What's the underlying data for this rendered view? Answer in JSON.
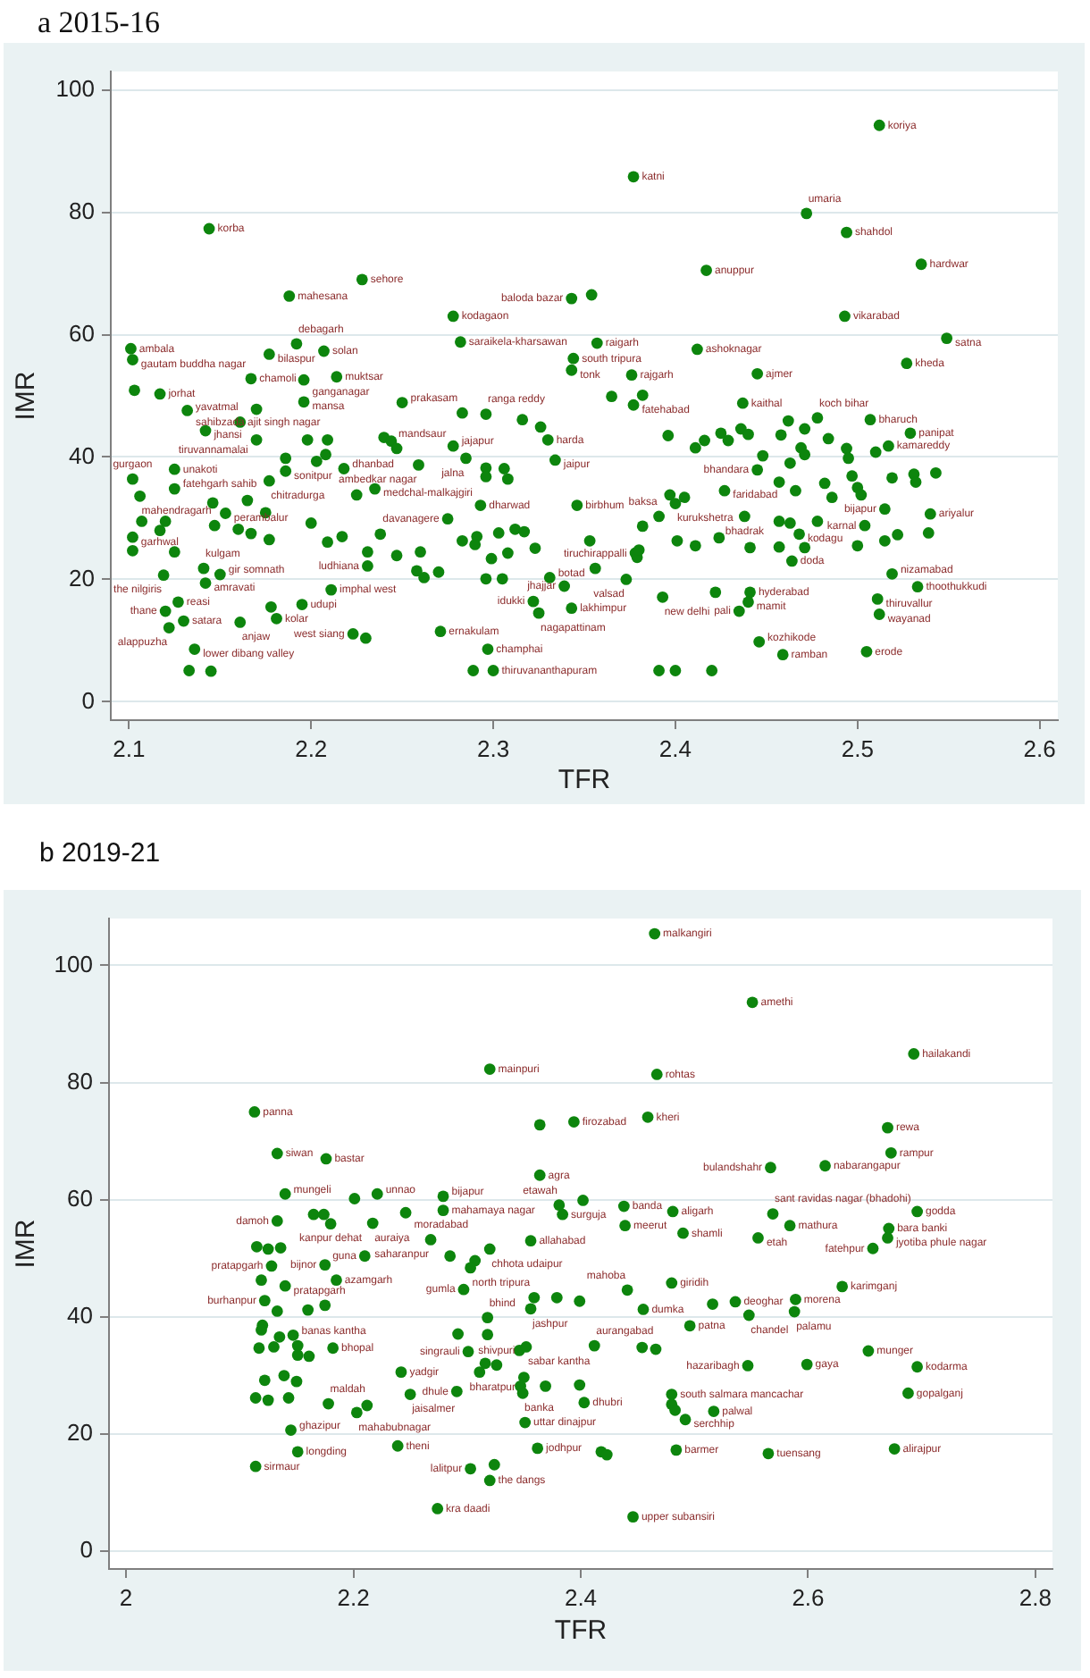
{
  "chart_data": [
    {
      "type": "scatter",
      "title": "a 2015-16",
      "xlabel": "TFR",
      "ylabel": "IMR",
      "color": "#0d850d",
      "marker": "circle",
      "grid": "y",
      "xlim": [
        2.09,
        2.61
      ],
      "ylim": [
        -3,
        103
      ],
      "xticks": [
        2.1,
        2.2,
        2.3,
        2.4,
        2.5,
        2.6
      ],
      "yticks": [
        0,
        20,
        40,
        60,
        80,
        100
      ],
      "x": [
        2.144,
        2.228,
        2.188,
        2.278,
        2.101,
        2.102,
        2.192,
        2.177,
        2.207,
        2.282,
        2.167,
        2.196,
        2.214,
        2.103,
        2.117,
        2.25,
        2.512,
        2.377,
        2.472,
        2.494,
        2.535,
        2.417,
        2.354,
        2.343,
        2.493,
        2.549,
        2.527,
        2.357,
        2.344,
        2.343,
        2.376,
        2.412,
        2.445,
        2.437,
        2.365,
        2.382,
        2.377,
        2.161,
        2.142,
        2.132,
        2.17,
        2.196,
        2.17,
        2.198,
        2.209,
        2.24,
        2.244,
        2.247,
        2.278,
        2.283,
        2.296,
        2.316,
        2.326,
        2.33,
        2.334,
        2.102,
        2.125,
        2.106,
        2.125,
        2.177,
        2.186,
        2.203,
        2.208,
        2.186,
        2.218,
        2.259,
        2.285,
        2.296,
        2.296,
        2.306,
        2.308,
        2.235,
        2.225,
        2.275,
        2.293,
        2.146,
        2.165,
        2.153,
        2.175,
        2.107,
        2.12,
        2.117,
        2.147,
        2.16,
        2.167,
        2.177,
        2.102,
        2.102,
        2.125,
        2.2,
        2.209,
        2.217,
        2.231,
        2.238,
        2.247,
        2.26,
        2.283,
        2.291,
        2.29,
        2.303,
        2.299,
        2.308,
        2.312,
        2.317,
        2.323,
        2.331,
        2.339,
        2.343,
        2.231,
        2.258,
        2.262,
        2.27,
        2.296,
        2.305,
        2.119,
        2.141,
        2.15,
        2.142,
        2.211,
        2.127,
        2.12,
        2.181,
        2.178,
        2.195,
        2.13,
        2.122,
        2.161,
        2.136,
        2.133,
        2.145,
        2.223,
        2.23,
        2.271,
        2.297,
        2.289,
        2.3,
        2.462,
        2.478,
        2.507,
        2.529,
        2.396,
        2.411,
        2.416,
        2.425,
        2.436,
        2.44,
        2.429,
        2.458,
        2.471,
        2.484,
        2.494,
        2.495,
        2.497,
        2.5,
        2.502,
        2.51,
        2.517,
        2.448,
        2.463,
        2.469,
        2.471,
        2.445,
        2.427,
        2.457,
        2.466,
        2.482,
        2.486,
        2.519,
        2.531,
        2.532,
        2.543,
        2.515,
        2.54,
        2.522,
        2.539,
        2.515,
        2.504,
        2.5,
        2.468,
        2.457,
        2.463,
        2.478,
        2.438,
        2.441,
        2.457,
        2.471,
        2.464,
        2.424,
        2.411,
        2.401,
        2.378,
        2.379,
        2.38,
        2.356,
        2.373,
        2.397,
        2.4,
        2.405,
        2.391,
        2.346,
        2.382,
        2.353,
        2.519,
        2.533,
        2.511,
        2.512,
        2.393,
        2.422,
        2.441,
        2.44,
        2.435,
        2.446,
        2.459,
        2.505,
        2.391,
        2.4,
        2.42,
        2.322,
        2.325
      ],
      "values": [
        77.3,
        69.0,
        66.3,
        63.0,
        57.7,
        55.9,
        58.5,
        56.8,
        57.3,
        58.8,
        52.8,
        52.6,
        53.1,
        50.9,
        50.3,
        48.9,
        94.2,
        85.8,
        79.8,
        76.7,
        71.5,
        70.5,
        66.5,
        65.9,
        63.0,
        59.4,
        55.3,
        58.6,
        56.1,
        54.2,
        53.4,
        57.6,
        53.6,
        48.8,
        49.9,
        50.1,
        48.5,
        45.7,
        44.3,
        47.6,
        47.8,
        49.0,
        42.8,
        42.8,
        42.8,
        43.2,
        42.6,
        41.4,
        41.8,
        47.2,
        47.0,
        46.1,
        44.9,
        42.8,
        39.5,
        36.4,
        38.0,
        33.6,
        34.8,
        36.1,
        39.8,
        39.3,
        40.4,
        37.7,
        38.1,
        38.7,
        39.8,
        38.2,
        36.8,
        38.1,
        36.4,
        34.8,
        33.8,
        29.9,
        32.1,
        32.5,
        32.9,
        30.8,
        30.9,
        29.5,
        29.5,
        28.0,
        28.8,
        28.2,
        27.5,
        26.5,
        26.9,
        24.7,
        24.5,
        29.2,
        26.1,
        27.0,
        24.5,
        27.4,
        23.9,
        24.5,
        26.3,
        27.0,
        25.7,
        27.6,
        23.4,
        24.3,
        28.2,
        27.8,
        25.1,
        20.3,
        18.9,
        15.3,
        22.2,
        21.4,
        20.3,
        21.2,
        20.1,
        20.1,
        20.7,
        21.8,
        20.8,
        19.4,
        18.3,
        16.3,
        14.8,
        13.6,
        15.5,
        15.9,
        13.2,
        12.1,
        13.0,
        8.6,
        5.1,
        5.0,
        11.1,
        10.4,
        11.5,
        8.6,
        5.1,
        5.1,
        45.9,
        46.4,
        46.1,
        43.9,
        43.5,
        41.5,
        42.7,
        43.9,
        44.6,
        43.7,
        42.7,
        43.6,
        44.6,
        43.0,
        41.4,
        39.8,
        36.9,
        35.0,
        33.8,
        40.8,
        41.8,
        40.2,
        39.0,
        41.5,
        40.4,
        37.9,
        34.5,
        35.9,
        34.5,
        35.7,
        33.4,
        36.6,
        37.2,
        35.9,
        37.4,
        31.5,
        30.7,
        27.3,
        27.6,
        26.3,
        28.8,
        25.5,
        27.4,
        29.5,
        29.2,
        29.5,
        30.3,
        25.2,
        25.3,
        25.2,
        23.0,
        26.8,
        25.5,
        26.3,
        24.3,
        23.6,
        24.8,
        21.8,
        20.0,
        33.8,
        32.4,
        33.4,
        30.3,
        32.1,
        28.7,
        26.3,
        20.9,
        18.8,
        16.8,
        14.3,
        17.1,
        17.9,
        17.9,
        16.3,
        14.8,
        9.8,
        7.7,
        8.2,
        5.1,
        5.1,
        5.1,
        16.4,
        14.5
      ],
      "annotations": [
        {
          "text": "koriya",
          "x": 2.512,
          "y": 94.2
        },
        {
          "text": "katni",
          "x": 2.377,
          "y": 85.8
        },
        {
          "text": "umaria",
          "x": 2.472,
          "y": 79.8
        },
        {
          "text": "korba",
          "x": 2.144,
          "y": 77.3
        },
        {
          "text": "shahdol",
          "x": 2.494,
          "y": 76.7
        },
        {
          "text": "hardwar",
          "x": 2.535,
          "y": 71.5
        },
        {
          "text": "anuppur",
          "x": 2.417,
          "y": 70.5
        },
        {
          "text": "sehore",
          "x": 2.228,
          "y": 69.0
        },
        {
          "text": "mahesana",
          "x": 2.188,
          "y": 66.3
        },
        {
          "text": "baloda bazar",
          "x": 2.343,
          "y": 65.9
        },
        {
          "text": "kodagaon",
          "x": 2.278,
          "y": 63.0
        },
        {
          "text": "vikarabad",
          "x": 2.493,
          "y": 63.0
        },
        {
          "text": "satna",
          "x": 2.549,
          "y": 59.4
        },
        {
          "text": "saraikela-kharsawan",
          "x": 2.282,
          "y": 58.8
        },
        {
          "text": "raigarh",
          "x": 2.357,
          "y": 58.6
        },
        {
          "text": "ambala",
          "x": 2.101,
          "y": 57.7
        },
        {
          "text": "ashoknagar",
          "x": 2.412,
          "y": 57.6
        },
        {
          "text": "debagarh",
          "x": 2.192,
          "y": 58.5
        },
        {
          "text": "solan",
          "x": 2.207,
          "y": 57.3
        },
        {
          "text": "bilaspur",
          "x": 2.177,
          "y": 56.8
        },
        {
          "text": "south tripura",
          "x": 2.344,
          "y": 56.1
        },
        {
          "text": "gautam buddha nagar",
          "x": 2.102,
          "y": 55.9
        },
        {
          "text": "kheda",
          "x": 2.527,
          "y": 55.3
        },
        {
          "text": "tonk",
          "x": 2.343,
          "y": 54.2
        },
        {
          "text": "ajmer",
          "x": 2.445,
          "y": 53.6
        },
        {
          "text": "rajgarh",
          "x": 2.376,
          "y": 53.4
        },
        {
          "text": "muktsar",
          "x": 2.214,
          "y": 53.1
        },
        {
          "text": "chamoli",
          "x": 2.167,
          "y": 52.8
        },
        {
          "text": "ganganagar",
          "x": 2.196,
          "y": 52.6
        },
        {
          "text": "jorhat",
          "x": 2.117,
          "y": 50.3
        },
        {
          "text": "mansa",
          "x": 2.196,
          "y": 49.0
        },
        {
          "text": "prakasam",
          "x": 2.25,
          "y": 48.9
        },
        {
          "text": "kaithal",
          "x": 2.437,
          "y": 48.8
        },
        {
          "text": "fatehabad",
          "x": 2.377,
          "y": 48.5
        },
        {
          "text": "sahibzada ajit singh nagar",
          "x": 2.132,
          "y": 47.6
        },
        {
          "text": "ranga reddy",
          "x": 2.296,
          "y": 47.0
        },
        {
          "text": "koch bihar",
          "x": 2.478,
          "y": 46.4
        },
        {
          "text": "bharuch",
          "x": 2.507,
          "y": 46.1
        },
        {
          "text": "yavatmal",
          "x": 2.161,
          "y": 45.7
        },
        {
          "text": "jhansi",
          "x": 2.142,
          "y": 44.3
        },
        {
          "text": "panipat",
          "x": 2.529,
          "y": 43.9
        },
        {
          "text": "tiruvannamalai",
          "x": 2.17,
          "y": 42.8
        },
        {
          "text": "harda",
          "x": 2.33,
          "y": 42.8
        },
        {
          "text": "kamareddy",
          "x": 2.517,
          "y": 41.8
        },
        {
          "text": "jajapur",
          "x": 2.278,
          "y": 41.8
        },
        {
          "text": "mandsaur",
          "x": 2.247,
          "y": 41.4
        },
        {
          "text": "jalna",
          "x": 2.285,
          "y": 39.8
        },
        {
          "text": "jaipur",
          "x": 2.334,
          "y": 39.5
        },
        {
          "text": "ambedkar nagar",
          "x": 2.259,
          "y": 38.7
        },
        {
          "text": "dhanbad",
          "x": 2.218,
          "y": 38.1
        },
        {
          "text": "unakoti",
          "x": 2.125,
          "y": 38.0
        },
        {
          "text": "bhandara",
          "x": 2.445,
          "y": 37.9
        },
        {
          "text": "sonitpur",
          "x": 2.186,
          "y": 37.7
        },
        {
          "text": "gurgaon",
          "x": 2.102,
          "y": 36.4
        },
        {
          "text": "chitradurga",
          "x": 2.177,
          "y": 36.1
        },
        {
          "text": "fatehgarh sahib",
          "x": 2.125,
          "y": 34.8
        },
        {
          "text": "medchal-malkajgiri",
          "x": 2.235,
          "y": 34.8
        },
        {
          "text": "faridabad",
          "x": 2.427,
          "y": 34.5
        },
        {
          "text": "mahendragarh",
          "x": 2.106,
          "y": 33.6
        },
        {
          "text": "kurukshetra",
          "x": 2.4,
          "y": 32.4
        },
        {
          "text": "birbhum",
          "x": 2.346,
          "y": 32.1
        },
        {
          "text": "dharwad",
          "x": 2.293,
          "y": 32.1
        },
        {
          "text": "bijapur",
          "x": 2.515,
          "y": 31.5
        },
        {
          "text": "perambalur",
          "x": 2.153,
          "y": 30.8
        },
        {
          "text": "ariyalur",
          "x": 2.54,
          "y": 30.7
        },
        {
          "text": "baksa",
          "x": 2.391,
          "y": 30.3
        },
        {
          "text": "bhadrak",
          "x": 2.438,
          "y": 30.3
        },
        {
          "text": "davanagere",
          "x": 2.275,
          "y": 29.9
        },
        {
          "text": "karnal",
          "x": 2.504,
          "y": 28.8
        },
        {
          "text": "kodagu",
          "x": 2.468,
          "y": 27.4
        },
        {
          "text": "garhwal",
          "x": 2.102,
          "y": 26.9
        },
        {
          "text": "doda",
          "x": 2.464,
          "y": 23.0
        },
        {
          "text": "ludhiana",
          "x": 2.231,
          "y": 22.2
        },
        {
          "text": "tiruchirappalli",
          "x": 2.356,
          "y": 21.8
        },
        {
          "text": "kulgam",
          "x": 2.141,
          "y": 21.8
        },
        {
          "text": "nizamabad",
          "x": 2.519,
          "y": 20.9
        },
        {
          "text": "gir somnath",
          "x": 2.15,
          "y": 20.8
        },
        {
          "text": "the nilgiris",
          "x": 2.119,
          "y": 20.7
        },
        {
          "text": "botad",
          "x": 2.331,
          "y": 20.3
        },
        {
          "text": "valsad",
          "x": 2.373,
          "y": 20.0
        },
        {
          "text": "amravati",
          "x": 2.142,
          "y": 19.4
        },
        {
          "text": "jhajjar",
          "x": 2.339,
          "y": 18.9
        },
        {
          "text": "thoothukkudi",
          "x": 2.533,
          "y": 18.8
        },
        {
          "text": "imphal west",
          "x": 2.211,
          "y": 18.3
        },
        {
          "text": "hyderabad",
          "x": 2.441,
          "y": 17.9
        },
        {
          "text": "new delhi",
          "x": 2.393,
          "y": 17.1
        },
        {
          "text": "thiruvallur",
          "x": 2.511,
          "y": 16.8
        },
        {
          "text": "idukki",
          "x": 2.322,
          "y": 16.4
        },
        {
          "text": "reasi",
          "x": 2.127,
          "y": 16.3
        },
        {
          "text": "mamit",
          "x": 2.44,
          "y": 16.3
        },
        {
          "text": "udupi",
          "x": 2.195,
          "y": 15.9
        },
        {
          "text": "lakhimpur",
          "x": 2.343,
          "y": 15.3
        },
        {
          "text": "thane",
          "x": 2.12,
          "y": 14.8
        },
        {
          "text": "pali",
          "x": 2.435,
          "y": 14.8
        },
        {
          "text": "nagapattinam",
          "x": 2.325,
          "y": 14.5
        },
        {
          "text": "wayanad",
          "x": 2.512,
          "y": 14.3
        },
        {
          "text": "kolar",
          "x": 2.181,
          "y": 13.6
        },
        {
          "text": "satara",
          "x": 2.13,
          "y": 13.2
        },
        {
          "text": "anjaw",
          "x": 2.161,
          "y": 13.0
        },
        {
          "text": "alappuzha",
          "x": 2.122,
          "y": 12.1
        },
        {
          "text": "ernakulam",
          "x": 2.271,
          "y": 11.5
        },
        {
          "text": "west siang",
          "x": 2.223,
          "y": 11.1
        },
        {
          "text": "kozhikode",
          "x": 2.446,
          "y": 9.8
        },
        {
          "text": "lower dibang valley",
          "x": 2.136,
          "y": 8.6
        },
        {
          "text": "champhai",
          "x": 2.297,
          "y": 8.6
        },
        {
          "text": "erode",
          "x": 2.505,
          "y": 8.2
        },
        {
          "text": "ramban",
          "x": 2.459,
          "y": 7.7
        },
        {
          "text": "thiruvananthapuram",
          "x": 2.3,
          "y": 5.1
        }
      ]
    },
    {
      "type": "scatter",
      "title": "b 2019-21",
      "xlabel": "TFR",
      "ylabel": "IMR",
      "color": "#0d850d",
      "marker": "circle",
      "grid": "y",
      "xlim": [
        1.985,
        2.815
      ],
      "ylim": [
        -3,
        108
      ],
      "xticks": [
        2,
        2.2,
        2.4,
        2.6,
        2.8
      ],
      "yticks": [
        0,
        20,
        40,
        60,
        80,
        100
      ],
      "x": [
        2.32,
        2.113,
        2.133,
        2.176,
        2.364,
        2.394,
        2.364,
        2.14,
        2.201,
        2.221,
        2.279,
        2.279,
        2.246,
        2.165,
        2.174,
        2.18,
        2.217,
        2.133,
        2.381,
        2.384,
        2.402,
        2.268,
        2.356,
        2.32,
        2.285,
        2.307,
        2.303,
        2.21,
        2.115,
        2.125,
        2.136,
        2.128,
        2.175,
        2.119,
        2.14,
        2.185,
        2.297,
        2.122,
        2.175,
        2.16,
        2.133,
        2.359,
        2.356,
        2.379,
        2.399,
        2.441,
        2.318,
        2.12,
        2.119,
        2.135,
        2.147,
        2.117,
        2.13,
        2.151,
        2.182,
        2.151,
        2.161,
        2.292,
        2.318,
        2.301,
        2.316,
        2.311,
        2.326,
        2.346,
        2.352,
        2.35,
        2.347,
        2.349,
        2.369,
        2.399,
        2.403,
        2.242,
        2.25,
        2.291,
        2.122,
        2.139,
        2.15,
        2.114,
        2.125,
        2.143,
        2.178,
        2.212,
        2.203,
        2.351,
        2.145,
        2.151,
        2.239,
        2.114,
        2.362,
        2.418,
        2.423,
        2.303,
        2.324,
        2.32,
        2.274,
        2.465,
        2.551,
        2.693,
        2.467,
        2.459,
        2.67,
        2.673,
        2.567,
        2.615,
        2.438,
        2.439,
        2.481,
        2.49,
        2.569,
        2.584,
        2.556,
        2.696,
        2.671,
        2.67,
        2.657,
        2.48,
        2.455,
        2.63,
        2.516,
        2.536,
        2.548,
        2.589,
        2.588,
        2.496,
        2.412,
        2.454,
        2.466,
        2.547,
        2.599,
        2.653,
        2.696,
        2.688,
        2.48,
        2.48,
        2.483,
        2.517,
        2.492,
        2.484,
        2.565,
        2.676,
        2.446
      ],
      "values": [
        82.3,
        75.0,
        67.9,
        67.0,
        72.8,
        73.3,
        64.2,
        61.0,
        60.2,
        61.0,
        60.6,
        58.2,
        57.8,
        57.5,
        57.5,
        55.9,
        56.0,
        56.4,
        59.1,
        57.5,
        59.9,
        53.2,
        53.0,
        51.6,
        50.4,
        49.6,
        48.4,
        50.4,
        52.0,
        51.6,
        51.8,
        48.7,
        48.9,
        46.3,
        45.3,
        46.3,
        44.7,
        42.8,
        42.0,
        41.2,
        41.0,
        43.3,
        41.4,
        43.3,
        42.7,
        44.6,
        39.9,
        38.6,
        37.8,
        36.6,
        36.9,
        34.7,
        34.9,
        35.1,
        34.7,
        33.5,
        33.3,
        37.1,
        37.0,
        34.1,
        32.1,
        30.6,
        31.8,
        34.3,
        34.9,
        29.7,
        28.2,
        27.0,
        28.2,
        28.4,
        25.4,
        30.6,
        26.8,
        27.3,
        29.2,
        30.0,
        29.0,
        26.2,
        25.8,
        26.2,
        25.2,
        24.9,
        23.7,
        22.0,
        20.7,
        17.0,
        18.0,
        14.5,
        17.6,
        17.0,
        16.5,
        14.1,
        14.8,
        12.1,
        7.3,
        105.4,
        93.7,
        84.9,
        81.4,
        74.1,
        72.3,
        68.0,
        65.5,
        65.8,
        58.9,
        55.6,
        58.0,
        54.3,
        57.6,
        55.6,
        53.5,
        58.0,
        55.1,
        53.5,
        51.7,
        45.8,
        41.3,
        45.2,
        42.2,
        42.6,
        40.3,
        43.0,
        40.9,
        38.5,
        35.1,
        34.8,
        34.5,
        31.7,
        31.9,
        34.2,
        31.5,
        27.0,
        26.8,
        25.1,
        24.1,
        23.9,
        22.5,
        17.3,
        16.7,
        17.5,
        5.9
      ],
      "annotations": [
        {
          "text": "malkangiri",
          "x": 2.465,
          "y": 105.4
        },
        {
          "text": "amethi",
          "x": 2.551,
          "y": 93.7
        },
        {
          "text": "hailakandi",
          "x": 2.693,
          "y": 84.9
        },
        {
          "text": "mainpuri",
          "x": 2.32,
          "y": 82.3
        },
        {
          "text": "rohtas",
          "x": 2.467,
          "y": 81.4
        },
        {
          "text": "panna",
          "x": 2.113,
          "y": 75.0
        },
        {
          "text": "kheri",
          "x": 2.459,
          "y": 74.1
        },
        {
          "text": "firozabad",
          "x": 2.394,
          "y": 73.3
        },
        {
          "text": "rewa",
          "x": 2.67,
          "y": 72.3
        },
        {
          "text": "rampur",
          "x": 2.673,
          "y": 68.0
        },
        {
          "text": "siwan",
          "x": 2.133,
          "y": 67.9
        },
        {
          "text": "bastar",
          "x": 2.176,
          "y": 67.0
        },
        {
          "text": "nabarangapur",
          "x": 2.615,
          "y": 65.8
        },
        {
          "text": "bulandshahr",
          "x": 2.567,
          "y": 65.5
        },
        {
          "text": "agra",
          "x": 2.364,
          "y": 64.2
        },
        {
          "text": "mungeli",
          "x": 2.14,
          "y": 61.0
        },
        {
          "text": "unnao",
          "x": 2.221,
          "y": 61.0
        },
        {
          "text": "bijapur",
          "x": 2.279,
          "y": 60.6
        },
        {
          "text": "etawah",
          "x": 2.381,
          "y": 59.1
        },
        {
          "text": "banda",
          "x": 2.438,
          "y": 58.9
        },
        {
          "text": "mahamaya nagar",
          "x": 2.279,
          "y": 58.2
        },
        {
          "text": "aligarh",
          "x": 2.481,
          "y": 58.0
        },
        {
          "text": "godda",
          "x": 2.696,
          "y": 58.0
        },
        {
          "text": "moradabad",
          "x": 2.246,
          "y": 57.8
        },
        {
          "text": "sant ravidas nagar (bhadohi)",
          "x": 2.569,
          "y": 57.6
        },
        {
          "text": "surguja",
          "x": 2.384,
          "y": 57.5
        },
        {
          "text": "damoh",
          "x": 2.133,
          "y": 56.4
        },
        {
          "text": "auraiya",
          "x": 2.217,
          "y": 56.0
        },
        {
          "text": "kanpur dehat",
          "x": 2.18,
          "y": 55.9
        },
        {
          "text": "meerut",
          "x": 2.439,
          "y": 55.6
        },
        {
          "text": "mathura",
          "x": 2.584,
          "y": 55.6
        },
        {
          "text": "bara banki",
          "x": 2.671,
          "y": 55.1
        },
        {
          "text": "shamli",
          "x": 2.49,
          "y": 54.3
        },
        {
          "text": "etah",
          "x": 2.556,
          "y": 53.5
        },
        {
          "text": "jyotiba phule nagar",
          "x": 2.67,
          "y": 53.5
        },
        {
          "text": "saharanpur",
          "x": 2.268,
          "y": 53.2
        },
        {
          "text": "allahabad",
          "x": 2.356,
          "y": 53.0
        },
        {
          "text": "fatehpur",
          "x": 2.657,
          "y": 51.7
        },
        {
          "text": "chhota udaipur",
          "x": 2.32,
          "y": 51.6
        },
        {
          "text": "guna",
          "x": 2.21,
          "y": 50.4
        },
        {
          "text": "bijnor",
          "x": 2.175,
          "y": 48.9
        },
        {
          "text": "pratapgarh",
          "x": 2.128,
          "y": 48.7
        },
        {
          "text": "north tripura",
          "x": 2.303,
          "y": 48.4
        },
        {
          "text": "azamgarh",
          "x": 2.185,
          "y": 46.3
        },
        {
          "text": "giridih",
          "x": 2.48,
          "y": 45.8
        },
        {
          "text": "pratapgarh",
          "x": 2.14,
          "y": 45.3
        },
        {
          "text": "karimganj",
          "x": 2.63,
          "y": 45.2
        },
        {
          "text": "gumla",
          "x": 2.297,
          "y": 44.7
        },
        {
          "text": "mahoba",
          "x": 2.441,
          "y": 44.6
        },
        {
          "text": "morena",
          "x": 2.589,
          "y": 43.0
        },
        {
          "text": "burhanpur",
          "x": 2.122,
          "y": 42.8
        },
        {
          "text": "deoghar",
          "x": 2.536,
          "y": 42.6
        },
        {
          "text": "jashpur",
          "x": 2.356,
          "y": 41.4
        },
        {
          "text": "dumka",
          "x": 2.455,
          "y": 41.3
        },
        {
          "text": "palamu",
          "x": 2.588,
          "y": 40.9
        },
        {
          "text": "chandel",
          "x": 2.548,
          "y": 40.3
        },
        {
          "text": "bhind",
          "x": 2.318,
          "y": 39.9
        },
        {
          "text": "patna",
          "x": 2.496,
          "y": 38.5
        },
        {
          "text": "banas kantha",
          "x": 2.147,
          "y": 36.9
        },
        {
          "text": "aurangabad",
          "x": 2.412,
          "y": 35.1
        },
        {
          "text": "sabar kantha",
          "x": 2.352,
          "y": 34.9
        },
        {
          "text": "bhopal",
          "x": 2.182,
          "y": 34.7
        },
        {
          "text": "munger",
          "x": 2.653,
          "y": 34.2
        },
        {
          "text": "singrauli",
          "x": 2.301,
          "y": 34.1
        },
        {
          "text": "gaya",
          "x": 2.599,
          "y": 31.9
        },
        {
          "text": "shivpuri",
          "x": 2.326,
          "y": 31.8
        },
        {
          "text": "hazaribagh",
          "x": 2.547,
          "y": 31.7
        },
        {
          "text": "kodarma",
          "x": 2.696,
          "y": 31.5
        },
        {
          "text": "yadgir",
          "x": 2.242,
          "y": 30.6
        },
        {
          "text": "bharatpur",
          "x": 2.35,
          "y": 29.7
        },
        {
          "text": "dhule",
          "x": 2.291,
          "y": 27.3
        },
        {
          "text": "banka",
          "x": 2.349,
          "y": 27.0
        },
        {
          "text": "gopalganj",
          "x": 2.688,
          "y": 27.0
        },
        {
          "text": "jaisalmer",
          "x": 2.25,
          "y": 26.8
        },
        {
          "text": "south salmara mancachar",
          "x": 2.48,
          "y": 26.8
        },
        {
          "text": "dhubri",
          "x": 2.403,
          "y": 25.4
        },
        {
          "text": "maldah",
          "x": 2.178,
          "y": 25.2
        },
        {
          "text": "palwal",
          "x": 2.517,
          "y": 23.9
        },
        {
          "text": "mahabubnagar",
          "x": 2.203,
          "y": 23.7
        },
        {
          "text": "serchhip",
          "x": 2.492,
          "y": 22.5
        },
        {
          "text": "uttar dinajpur",
          "x": 2.351,
          "y": 22.0
        },
        {
          "text": "ghazipur",
          "x": 2.145,
          "y": 20.7
        },
        {
          "text": "theni",
          "x": 2.239,
          "y": 18.0
        },
        {
          "text": "jodhpur",
          "x": 2.362,
          "y": 17.6
        },
        {
          "text": "alirajpur",
          "x": 2.676,
          "y": 17.5
        },
        {
          "text": "barmer",
          "x": 2.484,
          "y": 17.3
        },
        {
          "text": "longding",
          "x": 2.151,
          "y": 17.0
        },
        {
          "text": "tuensang",
          "x": 2.565,
          "y": 16.7
        },
        {
          "text": "sirmaur",
          "x": 2.114,
          "y": 14.5
        },
        {
          "text": "lalitpur",
          "x": 2.303,
          "y": 14.1
        },
        {
          "text": "the dangs",
          "x": 2.32,
          "y": 12.1
        },
        {
          "text": "kra daadi",
          "x": 2.274,
          "y": 7.3
        },
        {
          "text": "upper subansiri",
          "x": 2.446,
          "y": 5.9
        }
      ]
    }
  ]
}
